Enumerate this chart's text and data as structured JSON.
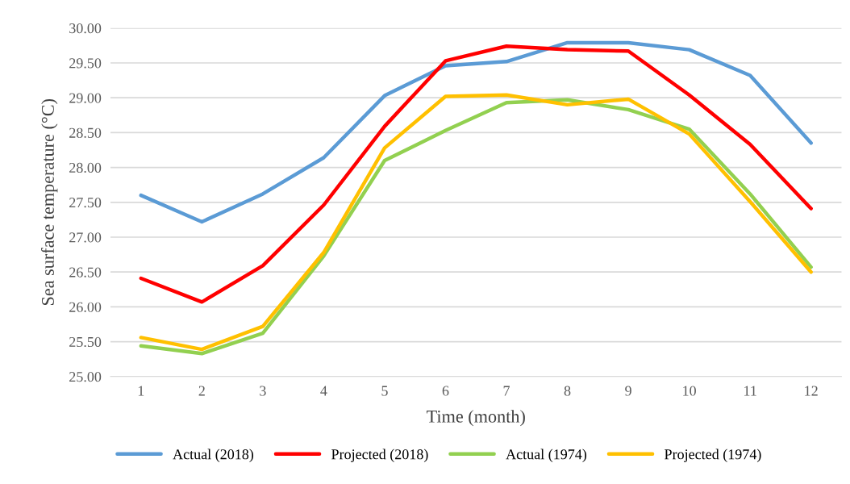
{
  "chart_data": {
    "type": "line",
    "xlabel": "Time (month)",
    "ylabel": "Sea surface temperature (°C)",
    "categories": [
      "1",
      "2",
      "3",
      "4",
      "5",
      "6",
      "7",
      "8",
      "9",
      "10",
      "11",
      "12"
    ],
    "ylim": [
      25,
      30
    ],
    "yticks": [
      {
        "value": 25,
        "label": "25.00"
      },
      {
        "value": 25.5,
        "label": "25.50"
      },
      {
        "value": 26,
        "label": "26.00"
      },
      {
        "value": 26.5,
        "label": "26.50"
      },
      {
        "value": 27,
        "label": "27.00"
      },
      {
        "value": 27.5,
        "label": "27.50"
      },
      {
        "value": 28,
        "label": "28.00"
      },
      {
        "value": 28.5,
        "label": "28.50"
      },
      {
        "value": 29,
        "label": "29.00"
      },
      {
        "value": 29.5,
        "label": "29.50"
      },
      {
        "value": 30,
        "label": "30.00"
      }
    ],
    "grid": "y",
    "legend": "bottom",
    "marker": "none",
    "line_style": "solid",
    "series": [
      {
        "name": "Actual (2018)",
        "color": "#5b9bd5",
        "values": [
          27.6,
          27.22,
          27.62,
          28.14,
          29.03,
          29.46,
          29.52,
          29.79,
          29.79,
          29.69,
          29.32,
          28.35
        ]
      },
      {
        "name": "Projected (2018)",
        "color": "#ff0000",
        "values": [
          26.41,
          26.07,
          26.59,
          27.46,
          28.59,
          29.53,
          29.74,
          29.69,
          29.67,
          29.04,
          28.33,
          27.41
        ]
      },
      {
        "name": "Actual (1974)",
        "color": "#92d050",
        "values": [
          25.44,
          25.33,
          25.62,
          26.73,
          28.1,
          28.53,
          28.93,
          28.97,
          28.83,
          28.55,
          27.62,
          26.57
        ]
      },
      {
        "name": "Projected (1974)",
        "color": "#ffc000",
        "values": [
          25.56,
          25.39,
          25.72,
          26.78,
          28.28,
          29.02,
          29.04,
          28.9,
          28.98,
          28.48,
          27.51,
          26.5
        ]
      }
    ]
  }
}
